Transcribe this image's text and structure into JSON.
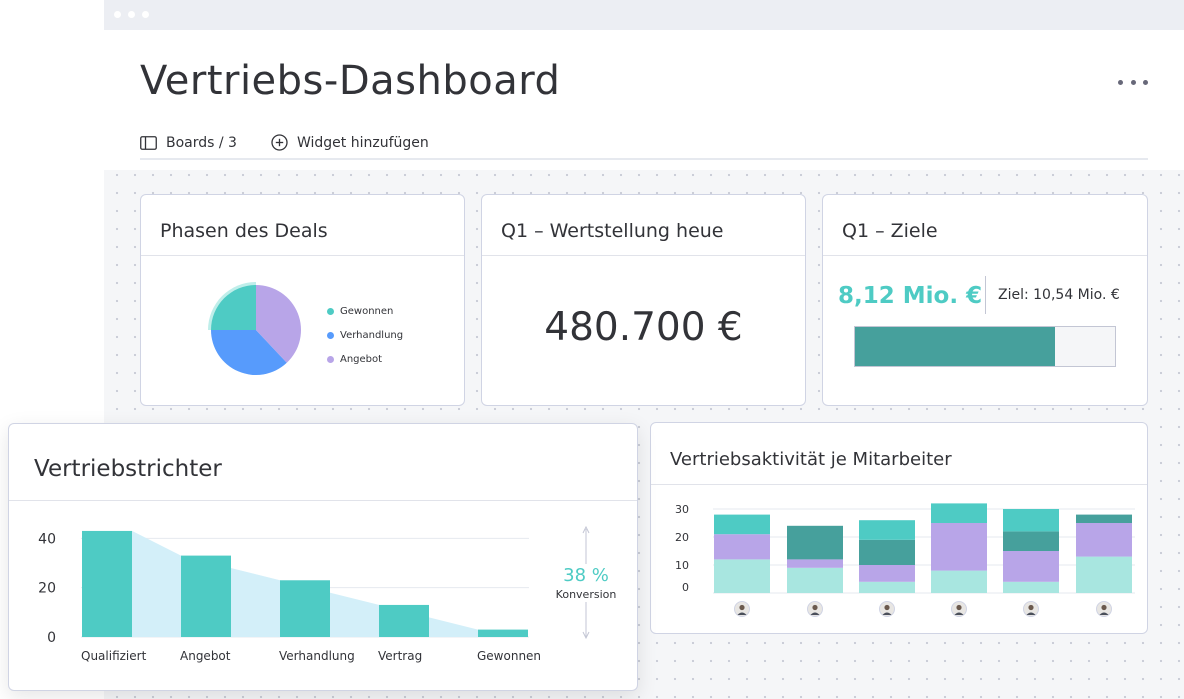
{
  "page": {
    "title": "Vertriebs-Dashboard"
  },
  "toolbar": {
    "boards_label": "Boards / 3",
    "add_widget_label": "Widget hinzufügen"
  },
  "widgets": {
    "deal_phases": {
      "title": "Phasen des Deals",
      "legend": [
        {
          "label": "Gewonnen",
          "color": "#4ecbc4"
        },
        {
          "label": "Verhandlung",
          "color": "#579bfc"
        },
        {
          "label": "Angebot",
          "color": "#b8a5e8"
        }
      ]
    },
    "q1_value": {
      "title": "Q1 – Wertstellung heue",
      "value": "480.700 €"
    },
    "q1_goals": {
      "title": "Q1 – Ziele",
      "current": "8,12 Mio. €",
      "target": "Ziel: 10,54 Mio. €",
      "progress": 0.77
    },
    "funnel": {
      "title": "Vertriebstrichter",
      "conversion_value": "38 %",
      "conversion_label": "Konversion"
    },
    "activity": {
      "title": "Vertriebsaktivität je Mitarbeiter"
    }
  },
  "colors": {
    "teal": "#4ecbc4",
    "dark_teal": "#46a09c",
    "blue": "#579bfc",
    "purple": "#b8a5e8",
    "light_teal": "#a8e6e0",
    "funnel_bg": "#d3eff9"
  },
  "chart_data": [
    {
      "type": "pie",
      "slices": [
        {
          "label": "Gewonnen",
          "value": 25,
          "color": "#4ecbc4"
        },
        {
          "label": "Verhandlung",
          "value": 37,
          "color": "#579bfc"
        },
        {
          "label": "Angebot",
          "value": 38,
          "color": "#b8a5e8"
        }
      ]
    },
    {
      "type": "bar",
      "categories": [
        "Qualifiziert",
        "Angebot",
        "Verhandlung",
        "Vertrag",
        "Gewonnen"
      ],
      "values": [
        43,
        33,
        23,
        13,
        3
      ],
      "yticks": [
        0,
        20,
        40
      ],
      "ylim": [
        0,
        45
      ],
      "color": "#4ecbc4"
    },
    {
      "type": "bar",
      "stacked": true,
      "categories": [
        "",
        "",
        "",
        "",
        "",
        ""
      ],
      "yticks": [
        0,
        10,
        20,
        30
      ],
      "ylim": [
        0,
        32
      ],
      "series": [
        {
          "color": "#a8e6e0",
          "values": [
            12,
            9,
            4,
            8,
            4,
            13
          ]
        },
        {
          "color": "#b8a5e8",
          "values": [
            9,
            3,
            6,
            17,
            11,
            12
          ]
        },
        {
          "color": "#46a09c",
          "values": [
            0,
            12,
            9,
            0,
            7,
            3
          ]
        },
        {
          "color": "#4ecbc4",
          "values": [
            7,
            0,
            7,
            7,
            8,
            0
          ]
        }
      ]
    }
  ]
}
